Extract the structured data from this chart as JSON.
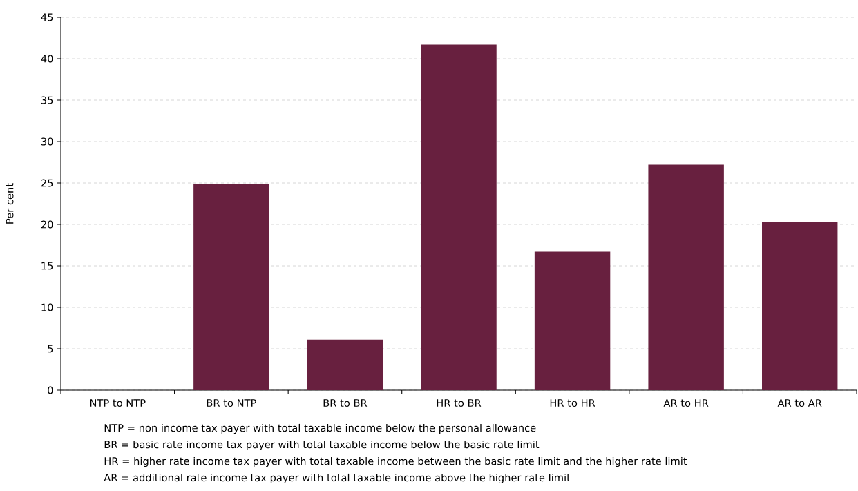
{
  "chart_data": {
    "type": "bar",
    "categories": [
      "NTP to NTP",
      "BR to NTP",
      "BR to BR",
      "HR to BR",
      "HR to HR",
      "AR to HR",
      "AR to AR"
    ],
    "values": [
      0,
      24.9,
      6.1,
      41.7,
      16.7,
      27.2,
      20.3
    ],
    "color": "#68203f",
    "ylabel": "Per cent",
    "ylim": [
      0,
      45
    ],
    "yticks": [
      0,
      5,
      10,
      15,
      20,
      25,
      30,
      35,
      40,
      45
    ],
    "grid": "y",
    "annotations": [
      "NTP = non income tax payer with total taxable income below the personal allowance",
      "BR = basic rate income tax payer with total taxable income below the basic rate limit",
      "HR = higher rate income tax payer with total taxable income between the basic rate limit and the higher rate limit",
      "AR = additional rate income tax payer with total taxable income above the higher rate limit"
    ]
  }
}
